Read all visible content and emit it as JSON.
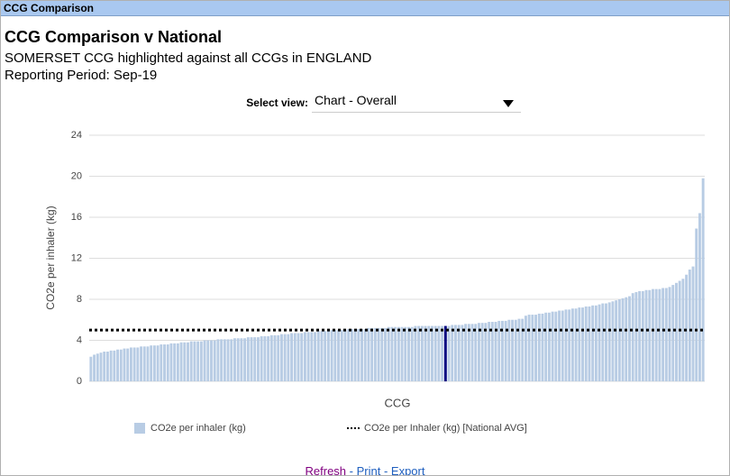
{
  "header": {
    "panel_title": "CCG Comparison",
    "title": "CCG Comparison v National",
    "subtitle": "SOMERSET CCG highlighted against all CCGs in ENGLAND",
    "period": "Reporting Period: Sep-19"
  },
  "view_selector": {
    "label": "Select view:",
    "value": "Chart - Overall"
  },
  "chart_data": {
    "type": "bar",
    "x_label": "CCG",
    "y_label": "CO2e per inhaler (kg)",
    "series": [
      {
        "name": "CO2e per inhaler (kg)",
        "color": "#b8cce4",
        "values": [
          2.4,
          2.6,
          2.7,
          2.8,
          2.9,
          2.9,
          3.0,
          3.0,
          3.1,
          3.1,
          3.2,
          3.2,
          3.3,
          3.3,
          3.3,
          3.4,
          3.4,
          3.4,
          3.5,
          3.5,
          3.5,
          3.6,
          3.6,
          3.6,
          3.7,
          3.7,
          3.7,
          3.8,
          3.8,
          3.8,
          3.9,
          3.9,
          3.9,
          3.9,
          4.0,
          4.0,
          4.0,
          4.0,
          4.1,
          4.1,
          4.1,
          4.1,
          4.1,
          4.2,
          4.2,
          4.2,
          4.2,
          4.3,
          4.3,
          4.3,
          4.3,
          4.4,
          4.4,
          4.4,
          4.5,
          4.5,
          4.5,
          4.6,
          4.6,
          4.6,
          4.7,
          4.7,
          4.7,
          4.7,
          4.8,
          4.8,
          4.8,
          4.8,
          4.9,
          4.9,
          4.9,
          4.9,
          5.0,
          5.0,
          5.0,
          5.0,
          5.0,
          5.1,
          5.1,
          5.1,
          5.1,
          5.1,
          5.1,
          5.2,
          5.2,
          5.2,
          5.2,
          5.2,
          5.2,
          5.3,
          5.3,
          5.3,
          5.3,
          5.3,
          5.3,
          5.3,
          5.3,
          5.4,
          5.4,
          5.4,
          5.4,
          5.4,
          5.4,
          5.4,
          5.4,
          5.4,
          5.4,
          5.4,
          5.5,
          5.5,
          5.5,
          5.5,
          5.6,
          5.6,
          5.6,
          5.6,
          5.7,
          5.7,
          5.7,
          5.8,
          5.8,
          5.8,
          5.9,
          5.9,
          5.9,
          6.0,
          6.0,
          6.0,
          6.1,
          6.1,
          6.4,
          6.5,
          6.5,
          6.5,
          6.6,
          6.6,
          6.7,
          6.7,
          6.8,
          6.8,
          6.9,
          6.9,
          7.0,
          7.0,
          7.1,
          7.1,
          7.2,
          7.2,
          7.3,
          7.3,
          7.4,
          7.4,
          7.5,
          7.6,
          7.6,
          7.7,
          7.8,
          7.9,
          8.0,
          8.1,
          8.2,
          8.3,
          8.6,
          8.7,
          8.8,
          8.8,
          8.9,
          8.9,
          9.0,
          9.0,
          9.0,
          9.1,
          9.1,
          9.2,
          9.4,
          9.6,
          9.8,
          10.0,
          10.4,
          10.9,
          11.2,
          14.9,
          16.4,
          19.8
        ]
      }
    ],
    "highlight": {
      "index": 106,
      "color": "#000080"
    },
    "reference_line": {
      "name": "CO2e per Inhaler (kg) [National AVG]",
      "value": 5,
      "color": "#000000"
    },
    "ylim": [
      0,
      24
    ],
    "yticks": [
      0,
      4,
      8,
      12,
      16,
      20,
      24
    ],
    "grid": true
  },
  "footer": {
    "refresh": "Refresh",
    "print": "- Print",
    "export": "- Export"
  }
}
